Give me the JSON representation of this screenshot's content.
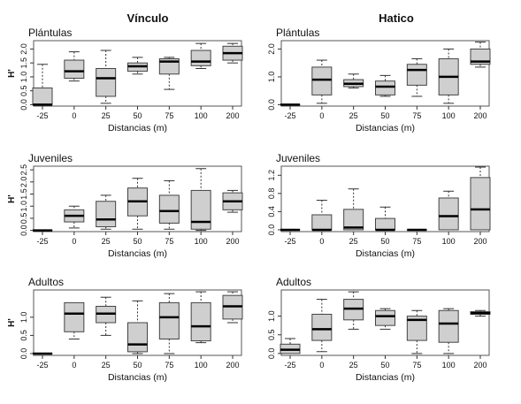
{
  "columns": [
    "Vínculo",
    "Hatico"
  ],
  "chart_data": [
    {
      "type": "boxplot",
      "column": "Vínculo",
      "title": "Plántulas",
      "xlabel": "Distancias (m)",
      "ylabel": "H'",
      "categories": [
        "-25",
        "0",
        "25",
        "50",
        "75",
        "100",
        "200"
      ],
      "yticks": [
        "0.0",
        "0.5",
        "1.0",
        "1.5",
        "2.0"
      ],
      "ylim": [
        -0.05,
        2.3
      ],
      "boxes": [
        {
          "min": 0.0,
          "q1": 0.0,
          "median": 0.0,
          "q3": 0.6,
          "max": 1.45
        },
        {
          "min": 0.85,
          "q1": 0.95,
          "median": 1.2,
          "q3": 1.6,
          "max": 1.9
        },
        {
          "min": 0.05,
          "q1": 0.3,
          "median": 0.95,
          "q3": 1.3,
          "max": 1.95
        },
        {
          "min": 1.1,
          "q1": 1.2,
          "median": 1.38,
          "q3": 1.5,
          "max": 1.7
        },
        {
          "min": 0.55,
          "q1": 1.1,
          "median": 1.55,
          "q3": 1.65,
          "max": 1.7
        },
        {
          "min": 1.3,
          "q1": 1.4,
          "median": 1.55,
          "q3": 1.95,
          "max": 2.2
        },
        {
          "min": 1.5,
          "q1": 1.6,
          "median": 1.85,
          "q3": 2.1,
          "max": 2.2
        }
      ]
    },
    {
      "type": "boxplot",
      "column": "Hatico",
      "title": "Plántulas",
      "xlabel": "Distancias (m)",
      "ylabel": "",
      "categories": [
        "-25",
        "0",
        "25",
        "50",
        "75",
        "100",
        "200"
      ],
      "yticks": [
        "0.0",
        "1.0",
        "2.0"
      ],
      "ylim": [
        -0.05,
        2.3
      ],
      "boxes": [
        {
          "min": 0.0,
          "q1": 0.0,
          "median": 0.0,
          "q3": 0.0,
          "max": 0.0
        },
        {
          "min": 0.05,
          "q1": 0.35,
          "median": 0.9,
          "q3": 1.35,
          "max": 1.6
        },
        {
          "min": 0.6,
          "q1": 0.65,
          "median": 0.75,
          "q3": 0.9,
          "max": 1.1
        },
        {
          "min": 0.3,
          "q1": 0.35,
          "median": 0.65,
          "q3": 0.85,
          "max": 1.05
        },
        {
          "min": 0.3,
          "q1": 0.7,
          "median": 1.25,
          "q3": 1.45,
          "max": 1.65
        },
        {
          "min": 0.05,
          "q1": 0.35,
          "median": 1.0,
          "q3": 1.65,
          "max": 2.0
        },
        {
          "min": 1.35,
          "q1": 1.45,
          "median": 1.55,
          "q3": 2.0,
          "max": 2.25
        }
      ]
    },
    {
      "type": "boxplot",
      "column": "Vínculo",
      "title": "Juveniles",
      "xlabel": "Distancias (m)",
      "ylabel": "H'",
      "categories": [
        "-25",
        "0",
        "25",
        "50",
        "75",
        "100",
        "200"
      ],
      "yticks": [
        "0.0",
        "0.5",
        "1.0",
        "1.5",
        "2.0",
        "2.5"
      ],
      "ylim": [
        -0.05,
        2.65
      ],
      "boxes": [
        {
          "min": 0.0,
          "q1": 0.0,
          "median": 0.0,
          "q3": 0.0,
          "max": 0.0
        },
        {
          "min": 0.1,
          "q1": 0.35,
          "median": 0.6,
          "q3": 0.85,
          "max": 1.0
        },
        {
          "min": 0.05,
          "q1": 0.15,
          "median": 0.45,
          "q3": 1.2,
          "max": 1.45
        },
        {
          "min": 0.05,
          "q1": 0.6,
          "median": 1.2,
          "q3": 1.75,
          "max": 2.15
        },
        {
          "min": 0.05,
          "q1": 0.3,
          "median": 0.8,
          "q3": 1.45,
          "max": 2.05
        },
        {
          "min": 0.0,
          "q1": 0.05,
          "median": 0.35,
          "q3": 1.65,
          "max": 2.55
        },
        {
          "min": 0.75,
          "q1": 0.85,
          "median": 1.2,
          "q3": 1.55,
          "max": 1.65
        }
      ]
    },
    {
      "type": "boxplot",
      "column": "Hatico",
      "title": "Juveniles",
      "xlabel": "Distancias (m)",
      "ylabel": "",
      "categories": [
        "-25",
        "0",
        "25",
        "50",
        "75",
        "100",
        "200"
      ],
      "yticks": [
        "0.0",
        "0.4",
        "0.8",
        "1.2"
      ],
      "ylim": [
        -0.04,
        1.4
      ],
      "boxes": [
        {
          "min": 0.0,
          "q1": 0.0,
          "median": 0.0,
          "q3": 0.0,
          "max": 0.0
        },
        {
          "min": 0.0,
          "q1": 0.0,
          "median": 0.0,
          "q3": 0.33,
          "max": 0.65
        },
        {
          "min": 0.0,
          "q1": 0.0,
          "median": 0.05,
          "q3": 0.45,
          "max": 0.9
        },
        {
          "min": 0.0,
          "q1": 0.0,
          "median": 0.0,
          "q3": 0.25,
          "max": 0.5
        },
        {
          "min": 0.0,
          "q1": 0.0,
          "median": 0.0,
          "q3": 0.0,
          "max": 0.0
        },
        {
          "min": 0.0,
          "q1": 0.0,
          "median": 0.3,
          "q3": 0.7,
          "max": 0.85
        },
        {
          "min": 0.0,
          "q1": 0.0,
          "median": 0.45,
          "q3": 1.15,
          "max": 1.38
        }
      ]
    },
    {
      "type": "boxplot",
      "column": "Vínculo",
      "title": "Adultos",
      "xlabel": "Distancias (m)",
      "ylabel": "H'",
      "categories": [
        "-25",
        "0",
        "25",
        "50",
        "75",
        "100",
        "200"
      ],
      "yticks": [
        "0.0",
        "0.5",
        "1.0"
      ],
      "ylim": [
        -0.05,
        1.75
      ],
      "boxes": [
        {
          "min": 0.0,
          "q1": 0.0,
          "median": 0.0,
          "q3": 0.0,
          "max": 0.0
        },
        {
          "min": 0.4,
          "q1": 0.6,
          "median": 1.1,
          "q3": 1.4,
          "max": 1.4
        },
        {
          "min": 0.5,
          "q1": 0.85,
          "median": 1.1,
          "q3": 1.3,
          "max": 1.55
        },
        {
          "min": 0.0,
          "q1": 0.05,
          "median": 0.25,
          "q3": 0.85,
          "max": 1.45
        },
        {
          "min": 0.0,
          "q1": 0.4,
          "median": 1.0,
          "q3": 1.4,
          "max": 1.65
        },
        {
          "min": 0.3,
          "q1": 0.35,
          "median": 0.75,
          "q3": 1.4,
          "max": 1.7
        },
        {
          "min": 0.85,
          "q1": 0.95,
          "median": 1.3,
          "q3": 1.6,
          "max": 1.7
        }
      ]
    },
    {
      "type": "boxplot",
      "column": "Hatico",
      "title": "Adultos",
      "xlabel": "Distancias (m)",
      "ylabel": "",
      "categories": [
        "-25",
        "0",
        "25",
        "50",
        "75",
        "100",
        "200"
      ],
      "yticks": [
        "0.0",
        "0.5",
        "1.0"
      ],
      "ylim": [
        -0.05,
        1.7
      ],
      "boxes": [
        {
          "min": 0.0,
          "q1": 0.0,
          "median": 0.1,
          "q3": 0.25,
          "max": 0.4
        },
        {
          "min": 0.05,
          "q1": 0.35,
          "median": 0.65,
          "q3": 1.05,
          "max": 1.45
        },
        {
          "min": 0.65,
          "q1": 0.9,
          "median": 1.2,
          "q3": 1.45,
          "max": 1.65
        },
        {
          "min": 0.65,
          "q1": 0.75,
          "median": 1.0,
          "q3": 1.15,
          "max": 1.2
        },
        {
          "min": 0.0,
          "q1": 0.35,
          "median": 0.9,
          "q3": 1.0,
          "max": 1.15
        },
        {
          "min": 0.0,
          "q1": 0.3,
          "median": 0.8,
          "q3": 1.15,
          "max": 1.2
        },
        {
          "min": 1.0,
          "q1": 1.05,
          "median": 1.08,
          "q3": 1.12,
          "max": 1.15
        }
      ]
    }
  ]
}
